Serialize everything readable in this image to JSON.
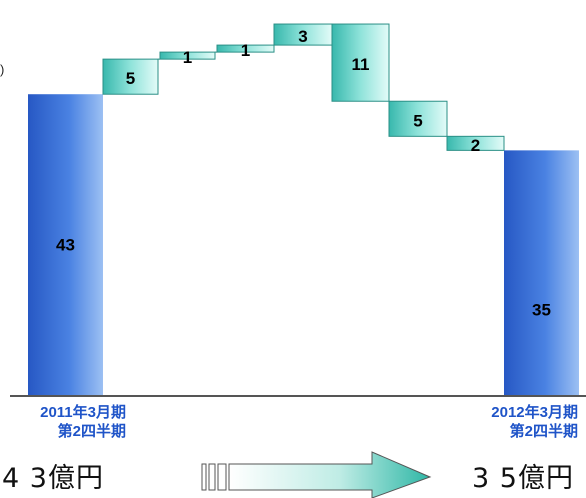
{
  "chart_data": {
    "type": "waterfall",
    "ylim": [
      0,
      55
    ],
    "start": {
      "category": "2011年3月期 第2四半期",
      "value": 43,
      "label": "43"
    },
    "end": {
      "category": "2012年3月期 第2四半期",
      "value": 35,
      "label": "35"
    },
    "steps": [
      {
        "delta": 5,
        "label": "5"
      },
      {
        "delta": 1,
        "label": "1"
      },
      {
        "delta": 1,
        "label": "1"
      },
      {
        "delta": 3,
        "label": "3"
      },
      {
        "delta": -11,
        "label": "11"
      },
      {
        "delta": -5,
        "label": "5"
      },
      {
        "delta": -2,
        "label": "2"
      }
    ],
    "colors": {
      "total": "#2f63cf",
      "total_light": "#8fb3ee",
      "step": "#3fc0b6",
      "step_light": "#d6f6f2",
      "baseline": "#555555",
      "arrow": "#2fb7a6"
    }
  },
  "labels": {
    "start_year": "2011年3月期",
    "start_quarter": "第2四半期",
    "end_year": "2012年3月期",
    "end_quarter": "第2四半期",
    "start_total": "4 3億円",
    "end_total": "3 5億円",
    "edge_glyph": ")"
  }
}
